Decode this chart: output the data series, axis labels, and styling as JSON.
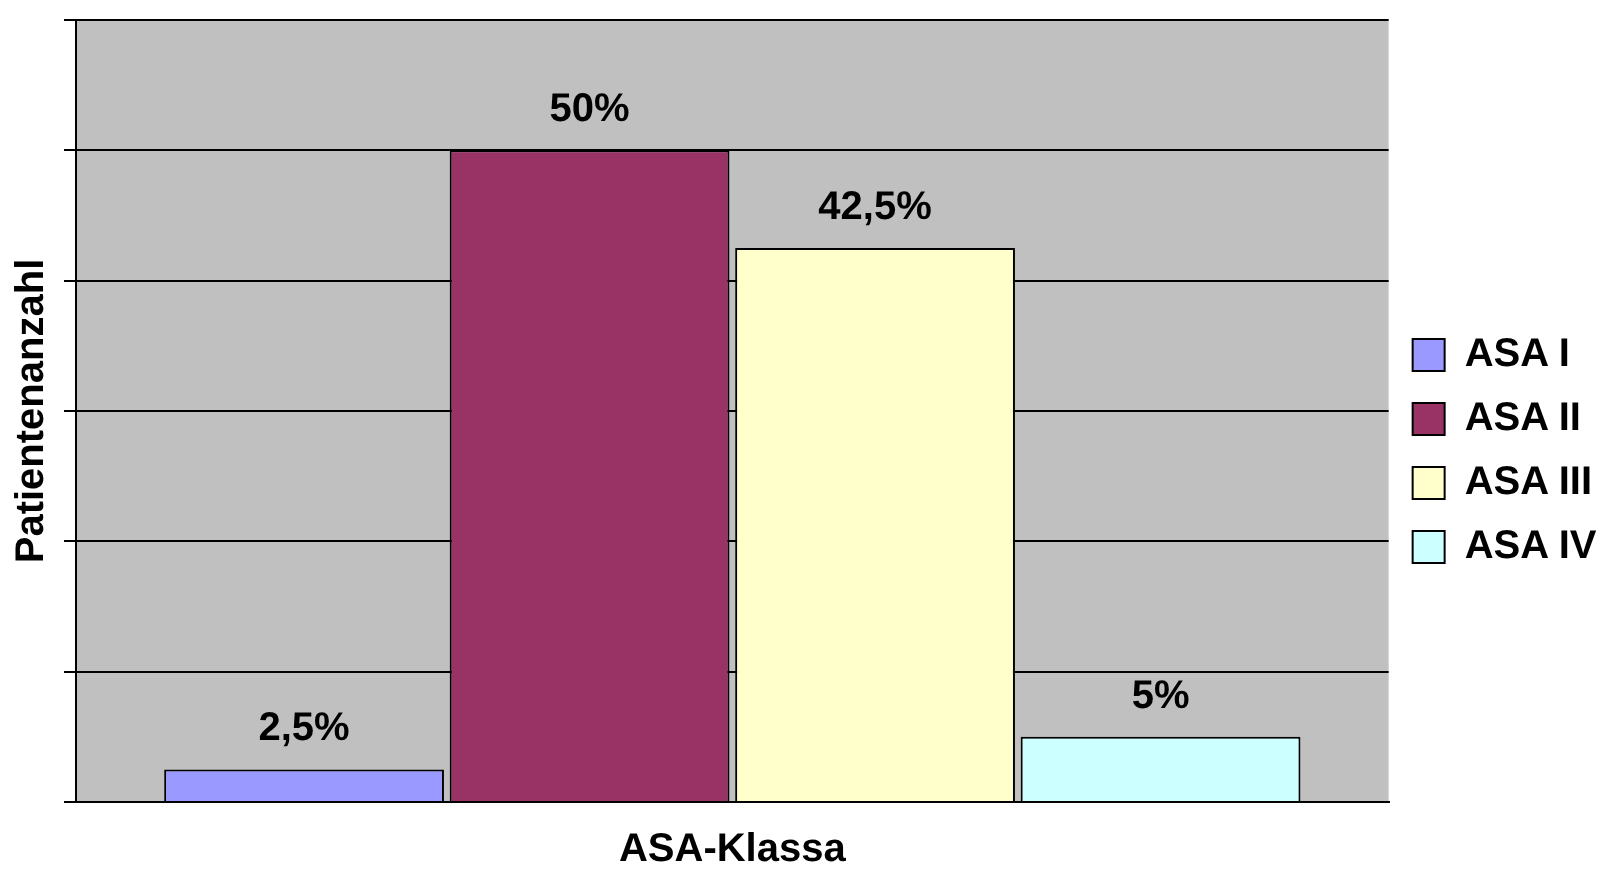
{
  "chart_data": {
    "type": "bar",
    "xlabel": "ASA-Klassa",
    "ylabel": "Patientenanzahl",
    "categories": [
      null
    ],
    "series": [
      {
        "name": "ASA I",
        "color": "#9999ff",
        "values": [
          2.5
        ],
        "value_labels": [
          "2,5%"
        ]
      },
      {
        "name": "ASA II",
        "color": "#993366",
        "values": [
          50
        ],
        "value_labels": [
          "50%"
        ]
      },
      {
        "name": "ASA III",
        "color": "#ffffcc",
        "values": [
          42.5
        ],
        "value_labels": [
          "42,5%"
        ]
      },
      {
        "name": "ASA IV",
        "color": "#ccffff",
        "values": [
          5
        ],
        "value_labels": [
          "5%"
        ]
      }
    ],
    "ylim": [
      0,
      60
    ],
    "yticks": [
      {
        "value": 0,
        "label": null
      },
      {
        "value": 10,
        "label": null
      },
      {
        "value": 20,
        "label": null
      },
      {
        "value": 30,
        "label": null
      },
      {
        "value": 40,
        "label": null
      },
      {
        "value": 50,
        "label": null
      },
      {
        "value": 60,
        "label": null
      }
    ],
    "grid": "y",
    "legend": "right",
    "tick_labels": false
  }
}
